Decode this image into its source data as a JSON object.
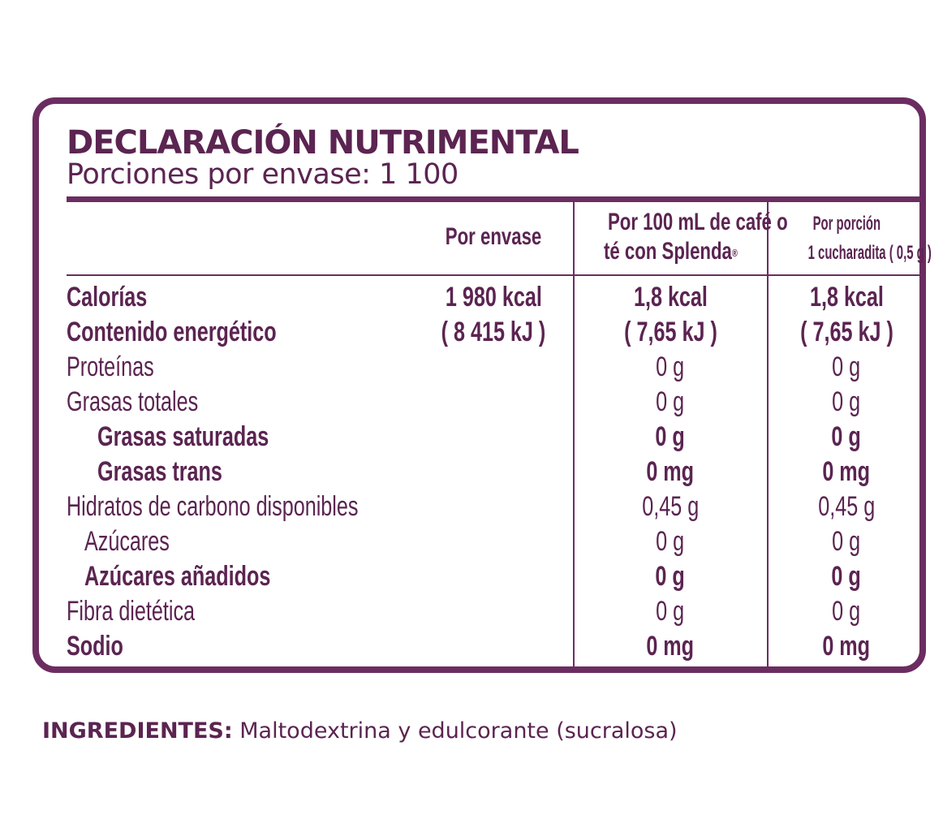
{
  "label": {
    "title": "DECLARACIÓN NUTRIMENTAL",
    "servings": "Porciones por envase: 1 100",
    "headers": {
      "col1": "Por envase",
      "col2_line1": "Por 100 mL de café o",
      "col2_line2": "té con Splenda",
      "col2_mark": "®",
      "col3_line1": "Por porción",
      "col3_line2": "1 cucharadita ( 0,5 g )"
    },
    "rows": [
      {
        "label": "Calorías",
        "per_package": "1 980 kcal",
        "per_100ml": "1,8 kcal",
        "per_serving": "1,8 kcal"
      },
      {
        "label": "Contenido energético",
        "per_package": "( 8 415 kJ )",
        "per_100ml": "( 7,65 kJ )",
        "per_serving": "( 7,65  kJ )"
      },
      {
        "label": "Proteínas",
        "per_100ml": "0 g",
        "per_serving": "0 g"
      },
      {
        "label": "Grasas totales",
        "per_100ml": "0 g",
        "per_serving": "0 g"
      },
      {
        "label": "Grasas saturadas",
        "per_100ml": "0 g",
        "per_serving": "0 g"
      },
      {
        "label": "Grasas trans",
        "per_100ml": "0 mg",
        "per_serving": "0 mg"
      },
      {
        "label": "Hidratos de carbono disponibles",
        "per_100ml": "0,45 g",
        "per_serving": "0,45 g"
      },
      {
        "label": "Azúcares",
        "per_100ml": "0 g",
        "per_serving": "0 g"
      },
      {
        "label": "Azúcares añadidos",
        "per_100ml": "0 g",
        "per_serving": "0 g"
      },
      {
        "label": "Fibra dietética",
        "per_100ml": "0 g",
        "per_serving": "0 g"
      },
      {
        "label": "Sodio",
        "per_100ml": "0 mg",
        "per_serving": "0 mg"
      }
    ]
  },
  "ingredients": {
    "label": "INGREDIENTES:",
    "text": "Maltodextrina y edulcorante (sucralosa)"
  },
  "colors": {
    "brand_purple": "#6b2d61",
    "text_purple": "#5b2451"
  }
}
